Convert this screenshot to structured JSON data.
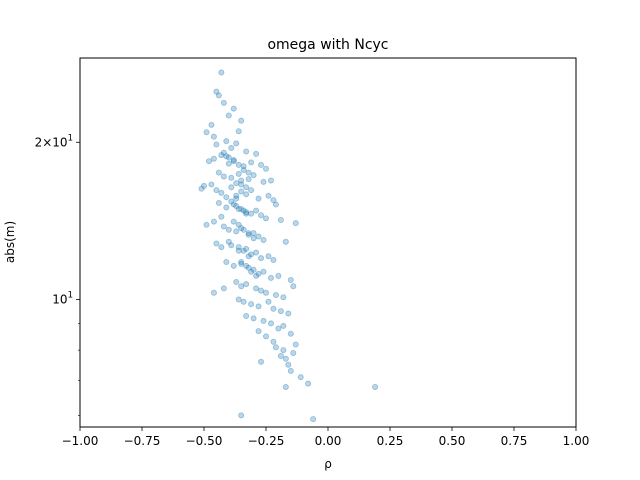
{
  "chart_data": {
    "type": "scatter",
    "title": "omega with Ncyc",
    "xlabel": "ρ",
    "ylabel": "abs(m)",
    "xlim": [
      -1.0,
      1.0
    ],
    "ylim": [
      5.7,
      29.0
    ],
    "yscale": "log",
    "x_ticks": [
      -1.0,
      -0.75,
      -0.5,
      -0.25,
      0.0,
      0.25,
      0.5,
      0.75,
      1.0
    ],
    "x_tick_labels": [
      "−1.00",
      "−0.75",
      "−0.50",
      "−0.25",
      "0.00",
      "0.25",
      "0.50",
      "0.75",
      "1.00"
    ],
    "y_major_ticks": [
      {
        "value": 10,
        "label_base": "10",
        "label_exp": "1"
      },
      {
        "value": 20,
        "label_base": "2×10",
        "label_exp": "1"
      }
    ],
    "y_minor_ticks": [
      6,
      7,
      8,
      9
    ],
    "grid": false,
    "legend": "none",
    "series": [
      {
        "color": "#1f77b4",
        "alpha": 0.3,
        "x": [
          -0.43,
          -0.45,
          -0.44,
          -0.42,
          -0.4,
          -0.38,
          -0.47,
          -0.49,
          -0.46,
          -0.41,
          -0.36,
          -0.35,
          -0.45,
          -0.39,
          -0.37,
          -0.33,
          -0.43,
          -0.46,
          -0.48,
          -0.41,
          -0.4,
          -0.38,
          -0.34,
          -0.31,
          -0.27,
          -0.25,
          -0.29,
          -0.44,
          -0.42,
          -0.36,
          -0.32,
          -0.3,
          -0.26,
          -0.23,
          -0.5,
          -0.51,
          -0.47,
          -0.45,
          -0.43,
          -0.39,
          -0.37,
          -0.35,
          -0.33,
          -0.28,
          -0.24,
          -0.22,
          -0.21,
          -0.44,
          -0.41,
          -0.38,
          -0.36,
          -0.34,
          -0.31,
          -0.29,
          -0.27,
          -0.25,
          -0.19,
          -0.13,
          -0.49,
          -0.46,
          -0.42,
          -0.4,
          -0.37,
          -0.35,
          -0.32,
          -0.3,
          -0.28,
          -0.26,
          -0.17,
          -0.45,
          -0.43,
          -0.39,
          -0.36,
          -0.33,
          -0.31,
          -0.29,
          -0.27,
          -0.24,
          -0.22,
          -0.41,
          -0.38,
          -0.35,
          -0.32,
          -0.3,
          -0.28,
          -0.26,
          -0.23,
          -0.2,
          -0.15,
          -0.42,
          -0.37,
          -0.35,
          -0.33,
          -0.29,
          -0.27,
          -0.25,
          -0.21,
          -0.18,
          -0.14,
          -0.36,
          -0.34,
          -0.31,
          -0.28,
          -0.24,
          -0.22,
          -0.19,
          -0.16,
          -0.46,
          -0.33,
          -0.3,
          -0.26,
          -0.23,
          -0.2,
          -0.18,
          -0.15,
          -0.28,
          -0.25,
          -0.22,
          -0.13,
          -0.21,
          -0.18,
          -0.14,
          -0.19,
          -0.17,
          -0.27,
          -0.16,
          -0.15,
          -0.11,
          -0.08,
          -0.17,
          0.19,
          -0.35,
          -0.06,
          -0.42,
          -0.4,
          -0.38,
          -0.36,
          -0.34,
          -0.32,
          -0.39,
          -0.37,
          -0.35,
          -0.33,
          -0.31,
          -0.41,
          -0.39,
          -0.37,
          -0.35,
          -0.33,
          -0.43,
          -0.38,
          -0.36,
          -0.34,
          -0.32,
          -0.3,
          -0.4,
          -0.36,
          -0.34,
          -0.32,
          -0.35,
          -0.33,
          -0.31,
          -0.29,
          -0.37,
          -0.35,
          -0.33
        ],
        "y": [
          27.2,
          25.0,
          24.6,
          23.8,
          22.5,
          23.2,
          21.6,
          20.9,
          20.5,
          20.1,
          21.0,
          22.0,
          19.8,
          19.5,
          19.9,
          19.2,
          18.9,
          18.6,
          18.4,
          18.8,
          18.2,
          18.5,
          18.0,
          18.3,
          18.1,
          17.8,
          19.0,
          17.5,
          17.2,
          17.4,
          17.0,
          17.3,
          16.8,
          16.9,
          16.5,
          16.3,
          16.6,
          16.2,
          16.0,
          16.4,
          15.8,
          16.1,
          15.9,
          15.6,
          15.8,
          15.5,
          15.2,
          15.3,
          15.0,
          15.2,
          14.9,
          14.8,
          14.6,
          14.8,
          14.5,
          14.3,
          14.2,
          14.0,
          13.9,
          14.1,
          13.8,
          13.6,
          13.5,
          13.7,
          13.3,
          13.4,
          13.2,
          13.0,
          12.9,
          12.8,
          12.6,
          12.7,
          12.4,
          12.5,
          12.2,
          12.3,
          12.0,
          12.1,
          11.9,
          11.8,
          11.6,
          11.7,
          11.5,
          11.4,
          11.2,
          11.3,
          11.0,
          11.1,
          10.9,
          10.5,
          10.8,
          10.6,
          10.7,
          10.5,
          10.4,
          10.3,
          10.2,
          10.1,
          10.6,
          10.0,
          9.9,
          9.8,
          9.7,
          9.9,
          9.6,
          9.5,
          9.4,
          10.3,
          9.3,
          9.2,
          9.1,
          9.0,
          8.8,
          8.9,
          8.6,
          8.7,
          8.5,
          8.3,
          8.2,
          8.1,
          8.0,
          7.9,
          7.8,
          7.7,
          7.6,
          7.5,
          7.3,
          7.1,
          6.9,
          6.8,
          6.8,
          6.0,
          5.9,
          19.1,
          18.7,
          18.4,
          18.1,
          17.7,
          17.5,
          17.1,
          16.7,
          16.6,
          16.4,
          16.2,
          15.7,
          15.4,
          15.1,
          14.9,
          14.6,
          14.4,
          14.1,
          13.9,
          13.6,
          13.4,
          13.1,
          12.9,
          12.6,
          12.4,
          12.1,
          11.8,
          11.6,
          11.3,
          11.1,
          15.6,
          16.9,
          14.7
        ]
      }
    ]
  }
}
